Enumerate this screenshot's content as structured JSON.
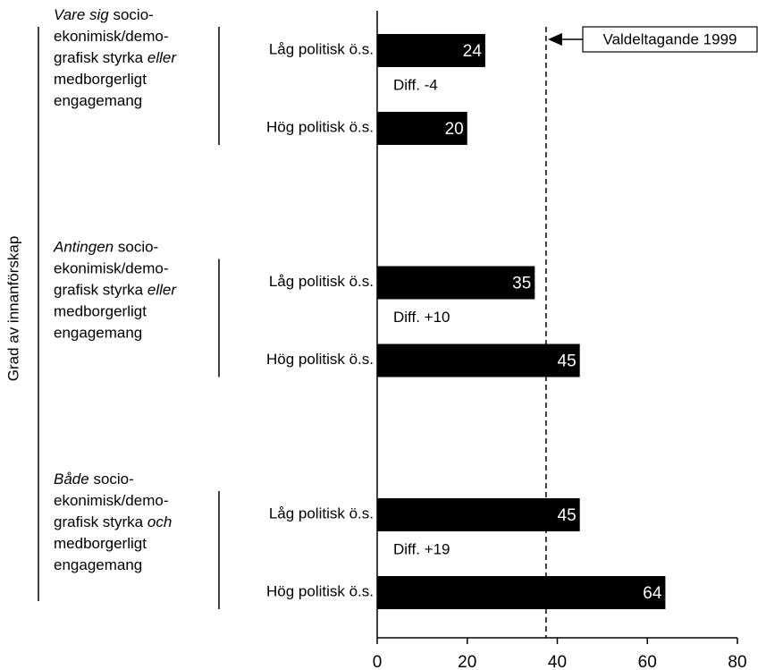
{
  "chart_data": {
    "type": "bar",
    "y_axis_label": "Grad av innanförskap",
    "xlim": [
      0,
      80
    ],
    "xticks": [
      0,
      20,
      40,
      60,
      80
    ],
    "color": "#000000",
    "reference_line": {
      "value": 37.5,
      "label": "Valdeltagande 1999"
    },
    "groups": [
      {
        "label_lines": [
          [
            {
              "text": "Vare sig",
              "italic": true
            },
            {
              "text": "socio-"
            }
          ],
          [
            {
              "text": "ekonimisk/demo-"
            }
          ],
          [
            {
              "text": "grafisk styrka"
            },
            {
              "text": "eller",
              "italic": true
            }
          ],
          [
            {
              "text": "medborgerligt"
            }
          ],
          [
            {
              "text": "engagemang"
            }
          ]
        ],
        "diff_label": "Diff. -4",
        "bars": [
          {
            "label": "Låg politisk ö.s.",
            "value": 24
          },
          {
            "label": "Hög politisk ö.s.",
            "value": 20
          }
        ]
      },
      {
        "label_lines": [
          [
            {
              "text": "Antingen",
              "italic": true
            },
            {
              "text": "socio-"
            }
          ],
          [
            {
              "text": "ekonimisk/demo-"
            }
          ],
          [
            {
              "text": "grafisk styrka"
            },
            {
              "text": "eller",
              "italic": true
            }
          ],
          [
            {
              "text": "medborgerligt"
            }
          ],
          [
            {
              "text": "engagemang"
            }
          ]
        ],
        "diff_label": "Diff. +10",
        "bars": [
          {
            "label": "Låg politisk ö.s.",
            "value": 35
          },
          {
            "label": "Hög politisk ö.s.",
            "value": 45
          }
        ]
      },
      {
        "label_lines": [
          [
            {
              "text": "Både",
              "italic": true
            },
            {
              "text": "socio-"
            }
          ],
          [
            {
              "text": "ekonimisk/demo-"
            }
          ],
          [
            {
              "text": "grafisk styrka"
            },
            {
              "text": "och",
              "italic": true
            }
          ],
          [
            {
              "text": "medborgerligt"
            }
          ],
          [
            {
              "text": "engagemang"
            }
          ]
        ],
        "diff_label": "Diff. +19",
        "bars": [
          {
            "label": "Låg politisk ö.s.",
            "value": 45
          },
          {
            "label": "Hög politisk ö.s.",
            "value": 64
          }
        ]
      }
    ]
  }
}
